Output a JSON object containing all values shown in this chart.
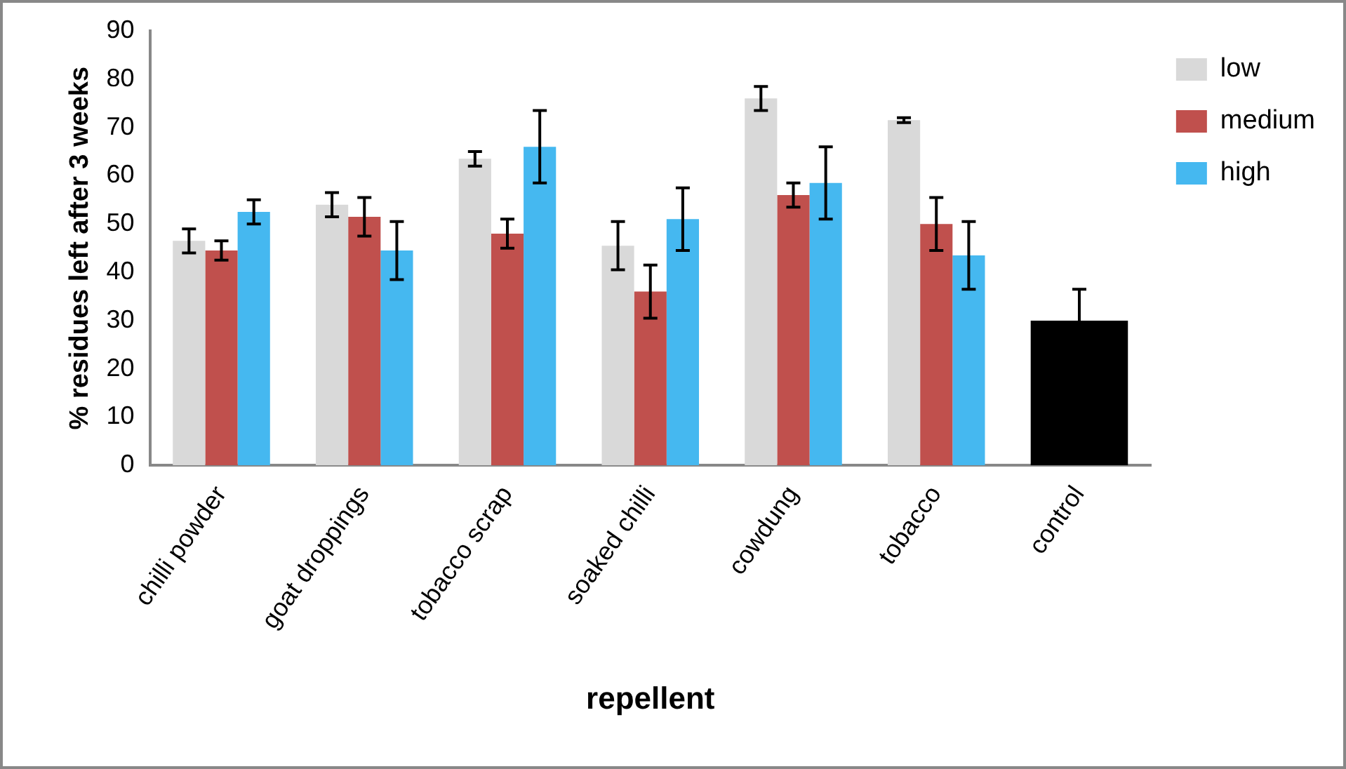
{
  "chart_data": {
    "type": "bar",
    "xlabel": "repellent",
    "ylabel": "% residues left after 3 weeks",
    "categories": [
      "chilli powder",
      "goat droppings",
      "tobacco scrap",
      "soaked chilli",
      "cowdung",
      "tobacco",
      "control"
    ],
    "series": [
      {
        "name": "low",
        "color": "#d9d9d9",
        "values": [
          46.5,
          54,
          63.5,
          45.5,
          76,
          71.5,
          null
        ],
        "errors": [
          2.5,
          2.5,
          1.5,
          5,
          2.5,
          0.5,
          null
        ]
      },
      {
        "name": "medium",
        "color": "#c0504d",
        "values": [
          44.5,
          51.5,
          48,
          36,
          56,
          50,
          null
        ],
        "errors": [
          2,
          4,
          3,
          5.5,
          2.5,
          5.5,
          null
        ]
      },
      {
        "name": "high",
        "color": "#45b8f0",
        "values": [
          52.5,
          44.5,
          66,
          51,
          58.5,
          43.5,
          null
        ],
        "errors": [
          2.5,
          6,
          7.5,
          6.5,
          7.5,
          7,
          null
        ]
      },
      {
        "color": "#000000",
        "values": [
          null,
          null,
          null,
          null,
          null,
          null,
          30
        ],
        "errors": [
          null,
          null,
          null,
          null,
          null,
          null,
          6.5
        ]
      }
    ],
    "ylim": [
      0,
      90
    ],
    "yticks": [
      0,
      10,
      20,
      30,
      40,
      50,
      60,
      70,
      80,
      90
    ],
    "grid": false,
    "legend": "right"
  }
}
